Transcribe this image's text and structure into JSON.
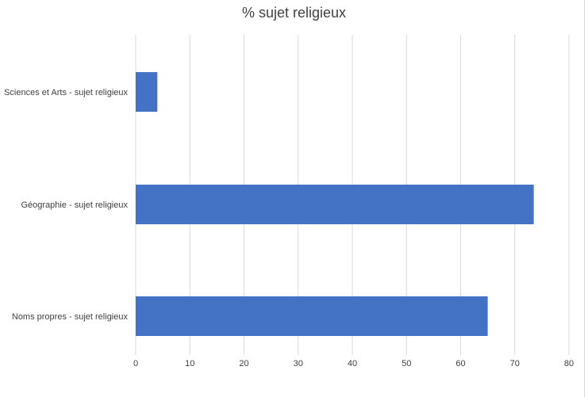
{
  "chart_data": {
    "type": "bar",
    "orientation": "horizontal",
    "title": "% sujet religieux",
    "xlabel": "",
    "ylabel": "",
    "categories": [
      "Sciences et Arts - sujet religieux",
      "Géographie - sujet religieux",
      "Noms propres - sujet religieux"
    ],
    "values": [
      4,
      73.5,
      65
    ],
    "xlim": [
      0,
      80
    ],
    "xticks": [
      0,
      10,
      20,
      30,
      40,
      50,
      60,
      70,
      80
    ],
    "grid": true,
    "legend": "none",
    "bar_color": "#4472c4",
    "grid_color": "#d9d9d9"
  }
}
